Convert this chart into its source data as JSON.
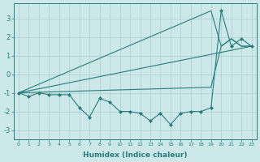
{
  "xlabel": "Humidex (Indice chaleur)",
  "color": "#2a7d7d",
  "bg_color": "#cce8e8",
  "grid_color": "#aacfcf",
  "ylim": [
    -3.5,
    3.8
  ],
  "yticks": [
    -3,
    -2,
    -1,
    0,
    1,
    2,
    3
  ],
  "xticks": [
    0,
    1,
    2,
    3,
    4,
    5,
    6,
    7,
    8,
    9,
    10,
    11,
    12,
    13,
    14,
    15,
    16,
    17,
    18,
    19,
    20,
    21,
    22,
    23
  ],
  "upper_x": [
    0,
    19,
    20,
    21,
    22,
    23
  ],
  "upper_y": [
    -1.0,
    3.4,
    1.5,
    1.9,
    1.5,
    1.5
  ],
  "bottom_x": [
    0,
    19,
    20,
    21,
    22,
    23
  ],
  "bottom_y": [
    -1.0,
    -0.7,
    1.5,
    1.9,
    1.5,
    1.5
  ],
  "trend_x": [
    0,
    23
  ],
  "trend_y": [
    -1.0,
    1.5
  ],
  "jagged_x": [
    0,
    1,
    2,
    3,
    4,
    5,
    6,
    7,
    8,
    9,
    10,
    11,
    12,
    13,
    14,
    15,
    16,
    17,
    18,
    19,
    20,
    21,
    22,
    23
  ],
  "jagged_y": [
    -1.0,
    -1.2,
    -1.0,
    -1.1,
    -1.1,
    -1.1,
    -1.8,
    -2.3,
    -1.3,
    -1.5,
    -2.0,
    -2.0,
    -2.1,
    -2.5,
    -2.1,
    -2.7,
    -2.1,
    -2.0,
    -2.0,
    -1.8,
    3.4,
    1.5,
    1.9,
    1.5
  ]
}
